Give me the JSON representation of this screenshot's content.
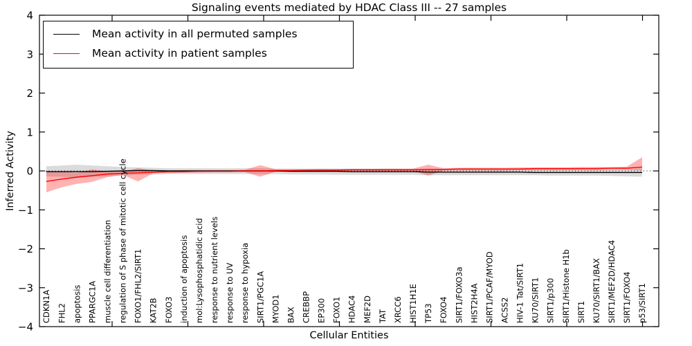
{
  "chart_data": {
    "type": "line",
    "title": "Signaling events mediated by HDAC Class III -- 27 samples",
    "xlabel": "Cellular Entities",
    "ylabel": "Inferred Activity",
    "ylim": [
      -4,
      4
    ],
    "yticks": [
      -4,
      -3,
      -2,
      -1,
      0,
      1,
      2,
      3,
      4
    ],
    "grid": false,
    "zero_reference_line": true,
    "legend_position": "upper left",
    "categories": [
      "CDKN1A",
      "FHL2",
      "apoptosis",
      "PPARGC1A",
      "muscle cell differentiation",
      "regulation of S phase of mitotic cell cycle",
      "FOXO1/FHL2/SIRT1",
      "KAT2B",
      "FOXO3",
      "induction of apoptosis",
      "mol:Lysophosphatidic acid",
      "response to nutrient levels",
      "response to UV",
      "response to hypoxia",
      "SIRT1/PGC1A",
      "MYOD1",
      "BAX",
      "CREBBP",
      "EP300",
      "FOXO1",
      "HDAC4",
      "MEF2D",
      "TAT",
      "XRCC6",
      "HIST1H1E",
      "TP53",
      "FOXO4",
      "SIRT1/FOXO3a",
      "HIST2H4A",
      "SIRT1/PCAF/MYOD",
      "ACSS2",
      "HIV-1 Tat/SIRT1",
      "KU70/SIRT1",
      "SIRT1/p300",
      "SIRT1/Histone H1b",
      "SIRT1",
      "KU70/SIRT1/BAX",
      "SIRT1/MEF2D/HDAC4",
      "SIRT1/FOXO4",
      "p53/SIRT1"
    ],
    "series": [
      {
        "name": "Mean activity in all permuted samples",
        "color": "#000000",
        "band_color": "#000000",
        "band_opacity": 0.14,
        "values": [
          -0.02,
          -0.02,
          -0.02,
          -0.02,
          -0.01,
          0,
          0.01,
          0.01,
          0,
          0,
          0,
          0,
          0,
          0,
          0,
          0,
          -0.01,
          -0.01,
          -0.01,
          -0.01,
          -0.02,
          -0.02,
          -0.02,
          -0.02,
          -0.02,
          -0.03,
          -0.03,
          -0.03,
          -0.03,
          -0.03,
          -0.03,
          -0.03,
          -0.04,
          -0.04,
          -0.04,
          -0.04,
          -0.04,
          -0.04,
          -0.04,
          -0.04
        ],
        "band_lo": [
          -0.14,
          -0.15,
          -0.17,
          -0.16,
          -0.14,
          -0.12,
          -0.1,
          -0.09,
          -0.08,
          -0.08,
          -0.08,
          -0.08,
          -0.08,
          -0.08,
          -0.08,
          -0.08,
          -0.09,
          -0.09,
          -0.09,
          -0.1,
          -0.1,
          -0.1,
          -0.1,
          -0.1,
          -0.1,
          -0.11,
          -0.11,
          -0.11,
          -0.11,
          -0.11,
          -0.11,
          -0.11,
          -0.11,
          -0.12,
          -0.12,
          -0.12,
          -0.12,
          -0.13,
          -0.14,
          -0.15
        ],
        "band_hi": [
          0.12,
          0.14,
          0.16,
          0.14,
          0.12,
          0.1,
          0.09,
          0.08,
          0.07,
          0.07,
          0.07,
          0.07,
          0.07,
          0.07,
          0.07,
          0.06,
          0.06,
          0.06,
          0.06,
          0.06,
          0.06,
          0.06,
          0.05,
          0.05,
          0.05,
          0.05,
          0.05,
          0.05,
          0.05,
          0.05,
          0.05,
          0.05,
          0.05,
          0.05,
          0.05,
          0.04,
          0.04,
          0.04,
          0.05,
          0.06
        ]
      },
      {
        "name": "Mean activity in patient samples",
        "color": "#ff0000",
        "band_color": "#ff0000",
        "band_opacity": 0.3,
        "values": [
          -0.27,
          -0.21,
          -0.16,
          -0.12,
          -0.08,
          -0.06,
          -0.05,
          -0.03,
          -0.02,
          -0.02,
          -0.01,
          -0.01,
          -0.01,
          0,
          0,
          0.01,
          0.01,
          0.02,
          0.02,
          0.02,
          0.03,
          0.03,
          0.03,
          0.03,
          0.03,
          0.04,
          0.04,
          0.05,
          0.05,
          0.05,
          0.05,
          0.05,
          0.06,
          0.06,
          0.06,
          0.06,
          0.06,
          0.07,
          0.07,
          0.1
        ],
        "band_lo": [
          -0.55,
          -0.42,
          -0.33,
          -0.28,
          -0.16,
          -0.1,
          -0.27,
          -0.06,
          -0.05,
          -0.04,
          -0.04,
          -0.03,
          -0.03,
          -0.03,
          -0.15,
          -0.02,
          -0.01,
          -0.01,
          -0.01,
          0,
          0,
          0,
          0,
          0,
          0,
          -0.12,
          0.01,
          0.01,
          0.01,
          0.01,
          0.01,
          0.02,
          0.02,
          0.02,
          0.02,
          0.02,
          0.02,
          0.03,
          0.03,
          0.02
        ],
        "band_hi": [
          0.0,
          -0.02,
          -0.05,
          0.04,
          -0.01,
          -0.01,
          0.07,
          0.01,
          0.01,
          0.02,
          0.02,
          0.02,
          0.02,
          0.03,
          0.15,
          0.04,
          0.04,
          0.04,
          0.05,
          0.05,
          0.05,
          0.05,
          0.06,
          0.06,
          0.06,
          0.16,
          0.07,
          0.08,
          0.08,
          0.08,
          0.08,
          0.09,
          0.09,
          0.09,
          0.09,
          0.1,
          0.1,
          0.1,
          0.11,
          0.35
        ]
      }
    ]
  },
  "legend": {
    "items": [
      {
        "label": "Mean activity in all permuted samples",
        "color": "#000000"
      },
      {
        "label": "Mean activity in patient samples",
        "color": "#ff0000"
      }
    ]
  }
}
